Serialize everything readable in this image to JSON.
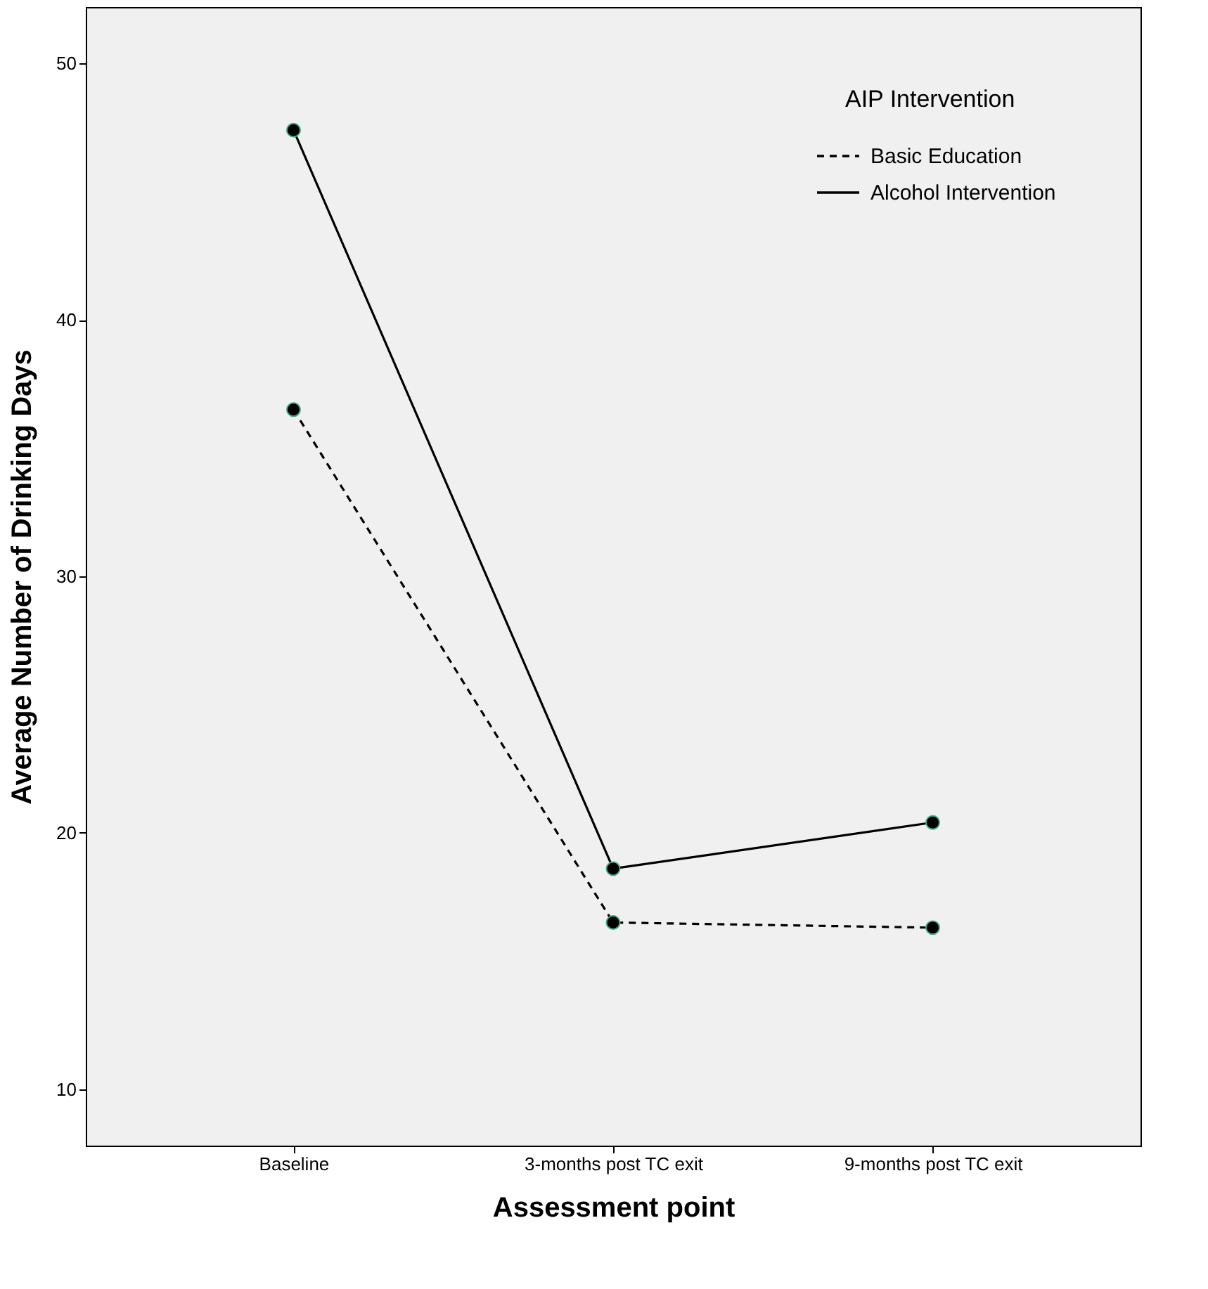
{
  "chart_data": {
    "type": "line",
    "xlabel": "Assessment point",
    "ylabel": "Average Number of Drinking Days",
    "legend_title": "AIP Intervention",
    "categories": [
      "Baseline",
      "3-months post TC exit",
      "9-months post TC exit"
    ],
    "series": [
      {
        "name": "Basic Education",
        "color": "#000000",
        "line_style": "dashed",
        "values": [
          36.5,
          16.5,
          16.3
        ]
      },
      {
        "name": "Alcohol Intervention",
        "color": "#000000",
        "line_style": "solid",
        "values": [
          47.4,
          18.6,
          20.4
        ]
      }
    ],
    "ylim": [
      7.8,
      52.2
    ],
    "yticks": [
      10,
      20,
      30,
      40,
      50
    ],
    "grid": false,
    "legend": "top right",
    "marker": "circle"
  }
}
